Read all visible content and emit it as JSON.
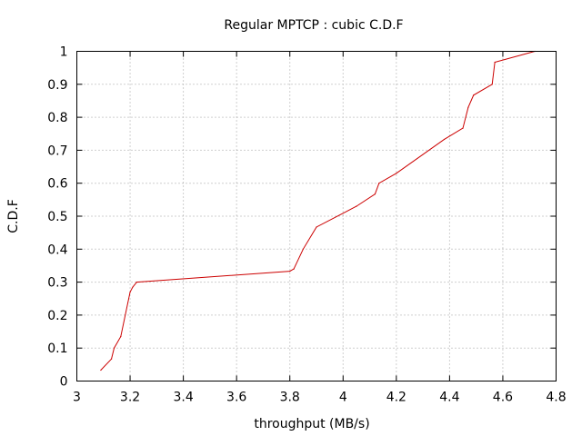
{
  "chart_data": {
    "type": "line",
    "title": "Regular MPTCP : cubic C.D.F",
    "xlabel": "throughput (MB/s)",
    "ylabel": "C.D.F",
    "xlim": [
      3,
      4.8
    ],
    "ylim": [
      0,
      1
    ],
    "x_ticks": [
      "3",
      "3.2",
      "3.4",
      "3.6",
      "3.8",
      "4",
      "4.2",
      "4.4",
      "4.6",
      "4.8"
    ],
    "y_ticks": [
      "0",
      "0.1",
      "0.2",
      "0.3",
      "0.4",
      "0.5",
      "0.6",
      "0.7",
      "0.8",
      "0.9",
      "1"
    ],
    "grid": true,
    "series": [
      {
        "color": "#cc0000",
        "x": [
          3.09,
          3.13,
          3.14,
          3.165,
          3.2,
          3.21,
          3.225,
          3.8,
          3.815,
          3.85,
          3.9,
          4.05,
          4.12,
          4.135,
          4.2,
          4.38,
          4.45,
          4.47,
          4.49,
          4.56,
          4.57,
          4.72
        ],
        "y": [
          0.033,
          0.067,
          0.1,
          0.135,
          0.27,
          0.285,
          0.3,
          0.333,
          0.34,
          0.4,
          0.467,
          0.53,
          0.567,
          0.6,
          0.63,
          0.733,
          0.767,
          0.83,
          0.867,
          0.9,
          0.967,
          1.0
        ]
      }
    ]
  }
}
